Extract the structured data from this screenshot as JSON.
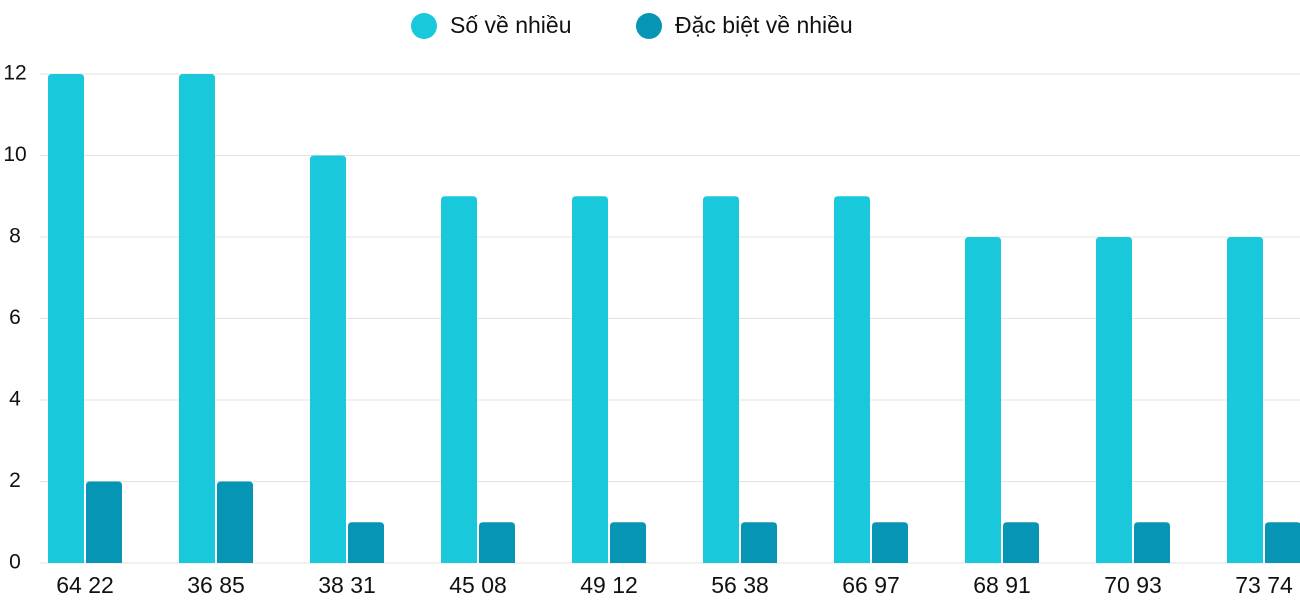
{
  "chart_data": {
    "type": "bar",
    "categories": [
      "64 22",
      "36 85",
      "38 31",
      "45 08",
      "49 12",
      "56 38",
      "66 97",
      "68 91",
      "70 93",
      "73 74"
    ],
    "series": [
      {
        "name": "Số về nhiều",
        "color": "#1ac8db",
        "values": [
          12,
          12,
          10,
          9,
          9,
          9,
          9,
          8,
          8,
          8
        ]
      },
      {
        "name": "Đặc biệt về nhiều",
        "color": "#0795b6",
        "values": [
          2,
          2,
          1,
          1,
          1,
          1,
          1,
          1,
          1,
          1
        ]
      }
    ],
    "ylim": [
      0,
      12
    ],
    "yticks": [
      0,
      2,
      4,
      6,
      8,
      10,
      12
    ],
    "grid": true,
    "legend": "top"
  }
}
